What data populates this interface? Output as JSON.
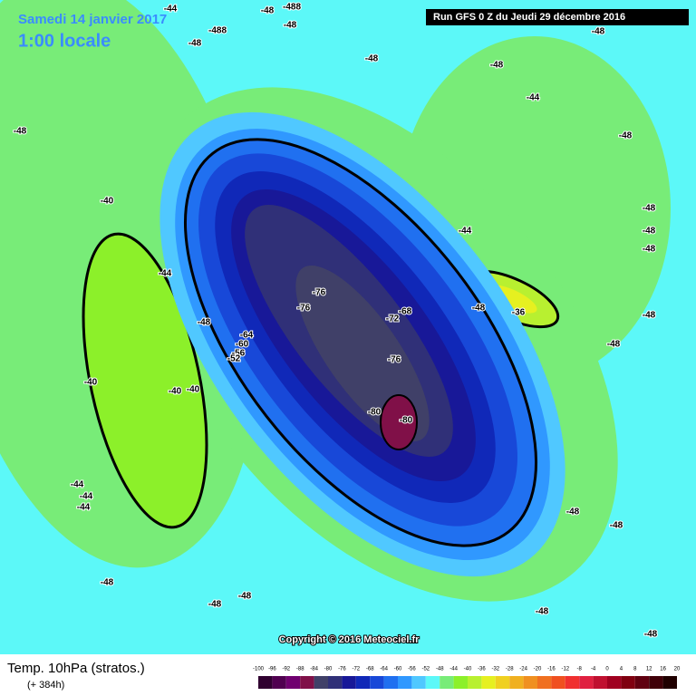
{
  "header": {
    "date": "Samedi 14 janvier 2017",
    "time": "1:00 locale",
    "run": "Run GFS 0 Z du Jeudi 29 décembre 2016"
  },
  "copyright": "Copyright © 2016 Meteociel.fr",
  "footer": {
    "title": "Temp. 10hPa (stratos.)",
    "lead": "(+ 384h)"
  },
  "colorbar": {
    "labels": [
      -100,
      -96,
      -92,
      -88,
      -84,
      -80,
      -76,
      -72,
      -68,
      -64,
      -60,
      -56,
      -52,
      -48,
      -44,
      -40,
      -36,
      -32,
      -28,
      -24,
      -20,
      -16,
      -12,
      -8,
      -4,
      0,
      4,
      8,
      12,
      16,
      20
    ]
  },
  "map": {
    "contour_labels": [
      "-44",
      "-48",
      "-488",
      "-48",
      "-488",
      "-48",
      "-48",
      "-40",
      "-44",
      "-48",
      "-64",
      "-60",
      "-56",
      "-52",
      "-40",
      "-40",
      "-40",
      "-44",
      "-44",
      "-44",
      "-48",
      "-48",
      "-48",
      "-76",
      "-76",
      "-72",
      "-68",
      "-76",
      "-80",
      "-80",
      "-44",
      "-48",
      "-36",
      "-48",
      "-48",
      "-48",
      "-48",
      "-48",
      "-44",
      "-48",
      "-48",
      "-48",
      "-48",
      "-48",
      "-48",
      "-48",
      "-48"
    ]
  }
}
